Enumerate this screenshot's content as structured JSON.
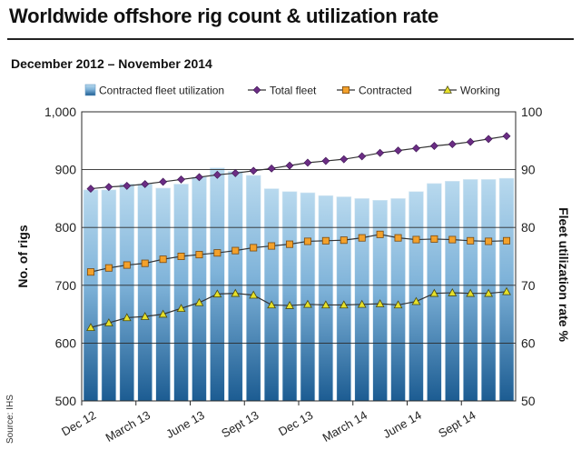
{
  "header": {
    "title": "Worldwide offshore rig count & utilization rate",
    "subtitle": "December 2012 – November 2014",
    "source": "Source: IHS"
  },
  "colors": {
    "bar_top": "#b8d9ee",
    "bar_bottom": "#1c5c92",
    "bar_edge": "#d7e8f3",
    "total": "#6b2d84",
    "contracted": "#f3a12b",
    "working": "#e6e02a",
    "line": "#333333",
    "grid": "#2a2a2a",
    "plot_bg": "#ffffff"
  },
  "chart_data": {
    "type": "bar",
    "title": "Worldwide offshore rig count & utilization rate",
    "subtitle": "December 2012 – November 2014",
    "ylabel": "No. of rigs",
    "y2label": "Fleet utilization rate %",
    "ylim": [
      500,
      1000
    ],
    "y2lim": [
      50,
      100
    ],
    "yticks": [
      "500",
      "600",
      "700",
      "800",
      "900",
      "1,000"
    ],
    "y2ticks": [
      "50",
      "60",
      "70",
      "80",
      "90",
      "100"
    ],
    "xtick_labels": [
      "Dec 12",
      "March 13",
      "June 13",
      "Sept 13",
      "Dec 13",
      "March 14",
      "June 14",
      "Sept 14"
    ],
    "xtick_indices": [
      0,
      3,
      6,
      9,
      12,
      15,
      18,
      21
    ],
    "categories": [
      "Dec 12",
      "Jan 13",
      "Feb 13",
      "Mar 13",
      "Apr 13",
      "May 13",
      "Jun 13",
      "Jul 13",
      "Aug 13",
      "Sep 13",
      "Oct 13",
      "Nov 13",
      "Dec 13",
      "Jan 14",
      "Feb 14",
      "Mar 14",
      "Apr 14",
      "May 14",
      "Jun 14",
      "Jul 14",
      "Aug 14",
      "Sep 14",
      "Oct 14",
      "Nov 14"
    ],
    "legend": [
      "Contracted fleet utilization",
      "Total fleet",
      "Contracted",
      "Working"
    ],
    "series": [
      {
        "name": "Contracted fleet utilization",
        "type": "bar",
        "axis": "right",
        "values": [
          86.5,
          86.5,
          87.5,
          87.5,
          86.8,
          87.5,
          88.7,
          90.3,
          89.7,
          89.0,
          86.7,
          86.2,
          86.0,
          85.5,
          85.3,
          85.0,
          84.7,
          85.0,
          86.2,
          87.6,
          88.0,
          88.3,
          88.3,
          88.5
        ]
      },
      {
        "name": "Total fleet",
        "type": "line",
        "axis": "left",
        "values": [
          867,
          870,
          872,
          875,
          879,
          883,
          887,
          891,
          894,
          898,
          902,
          907,
          912,
          915,
          918,
          923,
          929,
          933,
          937,
          941,
          944,
          948,
          953,
          958
        ]
      },
      {
        "name": "Contracted",
        "type": "line",
        "axis": "left",
        "values": [
          723,
          730,
          735,
          738,
          745,
          750,
          753,
          756,
          760,
          765,
          768,
          771,
          776,
          777,
          778,
          782,
          788,
          782,
          779,
          780,
          779,
          777,
          776,
          777
        ]
      },
      {
        "name": "Working",
        "type": "line",
        "axis": "left",
        "values": [
          627,
          635,
          644,
          646,
          650,
          660,
          670,
          685,
          686,
          683,
          666,
          665,
          667,
          666,
          666,
          667,
          668,
          666,
          672,
          686,
          687,
          686,
          686,
          689
        ]
      }
    ]
  }
}
